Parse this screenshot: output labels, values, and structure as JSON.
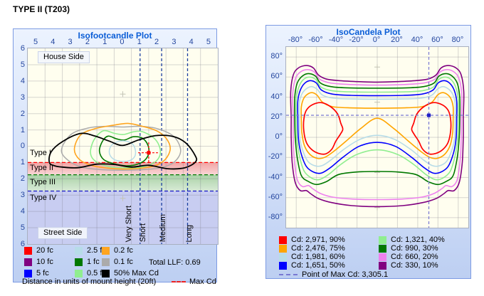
{
  "page_title": "TYPE II (T203)",
  "isofootcandle": {
    "title": "Isofootcandle Plot",
    "x_ticks": [
      "5",
      "4",
      "3",
      "2",
      "1",
      "0",
      "1",
      "2",
      "3",
      "4",
      "5"
    ],
    "y_ticks": [
      "6",
      "5",
      "4",
      "3",
      "2",
      "1",
      "0",
      "1",
      "2",
      "3",
      "4",
      "5",
      "6"
    ],
    "house_side_label": "House Side",
    "street_side_label": "Street Side",
    "type_labels": [
      "Type I",
      "Type II",
      "Type III",
      "Type IV"
    ],
    "throw_labels": [
      "Very Short",
      "Short",
      "Medium",
      "Long"
    ],
    "legend_columns": [
      [
        {
          "label": "20 fc",
          "color": "#FF0000"
        },
        {
          "label": "10 fc",
          "color": "#800080"
        },
        {
          "label": "5 fc",
          "color": "#0000FF"
        }
      ],
      [
        {
          "label": "2.5 fc",
          "color": "#B7DCE8"
        },
        {
          "label": "1 fc",
          "color": "#007800"
        },
        {
          "label": "0.5 fc",
          "color": "#90EE90"
        }
      ],
      [
        {
          "label": "0.2 fc",
          "color": "#FFA520"
        },
        {
          "label": "0.1 fc",
          "color": "#ABABAB"
        },
        {
          "label": "50% Max Cd",
          "color": "#000000"
        }
      ]
    ],
    "total_llf_label": "Total LLF: 0.69",
    "distance_label": "Distance in units of mount height (20ft)",
    "max_cd_label": "Max Cd",
    "lines": {
      "type_i_ii": "#FF0000",
      "type_ii_iii": "#007800",
      "type_iii_iv": "#1515C8",
      "throw": "#1B3FA0",
      "max_cd": "#FF0000"
    },
    "bands": {
      "type_ii": "#F2A4A4",
      "type_iii": "#A9D2A6",
      "type_iv": "#C8CDF1"
    }
  },
  "isocandela": {
    "title": "IsoCandela Plot",
    "x_ticks": [
      "-80°",
      "-60°",
      "-40°",
      "-20°",
      "0°",
      "20°",
      "40°",
      "60°",
      "80°"
    ],
    "y_ticks": [
      "80°",
      "60°",
      "40°",
      "20°",
      "0°",
      "-20°",
      "-40°",
      "-60°",
      "-80°"
    ],
    "legend_columns": [
      [
        {
          "label": "Cd: 2,971, 90%",
          "color": "#FF0000"
        },
        {
          "label": "Cd: 2,476, 75%",
          "color": "#FFA500"
        },
        {
          "label": "Cd: 1,981, 60%",
          "color": "#B7DCE8"
        },
        {
          "label": "Cd: 1,651, 50%",
          "color": "#0000FF"
        }
      ],
      [
        {
          "label": "Cd: 1,321, 40%",
          "color": "#90EE90"
        },
        {
          "label": "Cd: 990, 30%",
          "color": "#007800"
        },
        {
          "label": "Cd: 660, 20%",
          "color": "#EE82EE"
        },
        {
          "label": "Cd: 330, 10%",
          "color": "#800080"
        }
      ]
    ],
    "point_of_max_label": "Point of Max Cd: 3,305.1",
    "crosshair_color": "#7878D2",
    "marker_color": "#2020C8"
  },
  "chart_data": [
    {
      "type": "contour",
      "title": "Isofootcandle Plot",
      "x_axis": {
        "label": "Distance in units of mount height (20ft)",
        "ticks": [
          -5,
          -4,
          -3,
          -2,
          -1,
          0,
          1,
          2,
          3,
          4,
          5
        ],
        "range": [
          -5.5,
          5.5
        ]
      },
      "y_axis": {
        "house_side_ticks": [
          6,
          5,
          4,
          3,
          2,
          1
        ],
        "street_side_ticks": [
          1,
          2,
          3,
          4,
          5,
          6
        ],
        "range": [
          -6,
          6
        ]
      },
      "legend_levels_fc": [
        20,
        10,
        5,
        2.5,
        1,
        0.5,
        0.2,
        0.1
      ],
      "special_level": "50% Max Cd",
      "visible_contours_fc": [
        2.5,
        1,
        0.5,
        0.2,
        0.1
      ],
      "total_llf": 0.69,
      "mount_height_ft": 20,
      "max_cd_point_mh": {
        "x": 1.5,
        "y_street_side": 0.4
      },
      "type_boundaries_street_mh": {
        "type_i_ii": 1.0,
        "type_ii_iii": 1.75,
        "type_iii_iv": 2.75
      },
      "throw_boundaries_mh": {
        "very_short_short": 1.0,
        "short_medium": 2.25,
        "medium_long": 3.75
      },
      "grid": true
    },
    {
      "type": "contour",
      "title": "IsoCandela Plot",
      "x_axis": {
        "unit": "degrees horizontal",
        "ticks": [
          -80,
          -60,
          -40,
          -20,
          0,
          20,
          40,
          60,
          80
        ],
        "range": [
          -90,
          90
        ]
      },
      "y_axis": {
        "unit": "degrees vertical",
        "ticks": [
          80,
          60,
          40,
          20,
          0,
          -20,
          -40,
          -60,
          -80
        ],
        "range": [
          -90,
          90
        ]
      },
      "levels": [
        {
          "cd": 2971,
          "percent": 90
        },
        {
          "cd": 2476,
          "percent": 75
        },
        {
          "cd": 1981,
          "percent": 60
        },
        {
          "cd": 1651,
          "percent": 50
        },
        {
          "cd": 1321,
          "percent": 40
        },
        {
          "cd": 990,
          "percent": 30
        },
        {
          "cd": 660,
          "percent": 20
        },
        {
          "cd": 330,
          "percent": 10
        }
      ],
      "max_cd": 3305.1,
      "point_of_max_deg": {
        "horizontal": 51,
        "vertical": 22
      },
      "grid": true
    }
  ]
}
